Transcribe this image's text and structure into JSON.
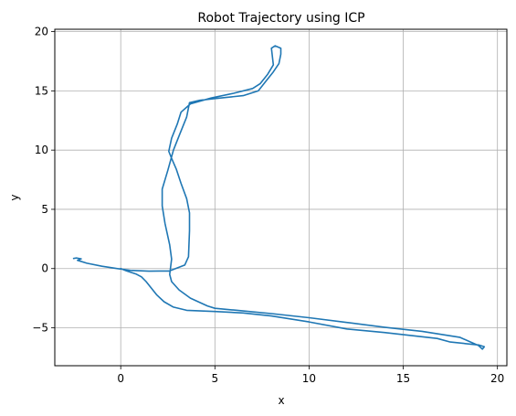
{
  "chart_data": {
    "type": "line",
    "title": "Robot Trajectory using ICP",
    "xlabel": "x",
    "ylabel": "y",
    "xlim": [
      -3.5,
      20.5
    ],
    "ylim": [
      -8.2,
      20.2
    ],
    "xticks": [
      0,
      5,
      10,
      15,
      20
    ],
    "yticks": [
      -5,
      0,
      5,
      10,
      15,
      20
    ],
    "grid": true,
    "series": [
      {
        "color": "#1f77b4",
        "points": [
          [
            0.0,
            0.0
          ],
          [
            0.3,
            -0.2
          ],
          [
            0.8,
            -0.45
          ],
          [
            1.1,
            -0.7
          ],
          [
            1.35,
            -1.1
          ],
          [
            1.6,
            -1.6
          ],
          [
            1.9,
            -2.2
          ],
          [
            2.3,
            -2.8
          ],
          [
            2.8,
            -3.25
          ],
          [
            3.5,
            -3.52
          ],
          [
            5.0,
            -3.62
          ],
          [
            6.5,
            -3.75
          ],
          [
            8.0,
            -4.0
          ],
          [
            10.0,
            -4.5
          ],
          [
            12.0,
            -5.1
          ],
          [
            14.0,
            -5.4
          ],
          [
            16.8,
            -5.9
          ],
          [
            17.5,
            -6.2
          ],
          [
            19.0,
            -6.45
          ],
          [
            19.3,
            -6.6
          ],
          [
            19.2,
            -6.8
          ],
          [
            19.0,
            -6.5
          ],
          [
            18.0,
            -5.8
          ],
          [
            16.0,
            -5.3
          ],
          [
            14.0,
            -4.95
          ],
          [
            12.0,
            -4.55
          ],
          [
            10.0,
            -4.15
          ],
          [
            8.0,
            -3.8
          ],
          [
            6.0,
            -3.5
          ],
          [
            5.0,
            -3.35
          ],
          [
            4.6,
            -3.15
          ],
          [
            3.7,
            -2.5
          ],
          [
            3.1,
            -1.8
          ],
          [
            2.7,
            -1.1
          ],
          [
            2.6,
            -0.5
          ],
          [
            2.7,
            0.8
          ],
          [
            2.6,
            2.0
          ],
          [
            2.35,
            3.8
          ],
          [
            2.2,
            5.3
          ],
          [
            2.2,
            6.7
          ],
          [
            2.5,
            8.3
          ],
          [
            2.8,
            10.0
          ],
          [
            3.1,
            11.2
          ],
          [
            3.5,
            12.8
          ],
          [
            3.65,
            14.0
          ],
          [
            4.2,
            14.2
          ],
          [
            5.0,
            14.35
          ],
          [
            6.5,
            14.6
          ],
          [
            7.3,
            15.0
          ],
          [
            7.7,
            15.8
          ],
          [
            8.1,
            16.6
          ],
          [
            8.4,
            17.3
          ],
          [
            8.5,
            18.1
          ],
          [
            8.5,
            18.6
          ],
          [
            8.2,
            18.8
          ],
          [
            8.0,
            18.6
          ],
          [
            8.1,
            17.2
          ],
          [
            7.8,
            16.4
          ],
          [
            7.4,
            15.6
          ],
          [
            7.0,
            15.2
          ],
          [
            6.0,
            14.8
          ],
          [
            4.8,
            14.4
          ],
          [
            3.7,
            13.9
          ],
          [
            3.2,
            13.2
          ],
          [
            3.0,
            12.2
          ],
          [
            2.7,
            11.0
          ],
          [
            2.55,
            9.9
          ],
          [
            2.7,
            9.3
          ],
          [
            2.95,
            8.4
          ],
          [
            3.2,
            7.2
          ],
          [
            3.5,
            5.9
          ],
          [
            3.65,
            4.7
          ],
          [
            3.65,
            3.2
          ],
          [
            3.6,
            1.0
          ],
          [
            3.4,
            0.3
          ],
          [
            2.6,
            -0.2
          ],
          [
            1.5,
            -0.22
          ],
          [
            0.5,
            -0.15
          ],
          [
            -0.4,
            0.05
          ],
          [
            -1.0,
            0.2
          ],
          [
            -1.8,
            0.45
          ],
          [
            -2.3,
            0.7
          ],
          [
            -2.1,
            0.82
          ],
          [
            -2.35,
            0.9
          ],
          [
            -2.5,
            0.85
          ]
        ]
      }
    ]
  }
}
